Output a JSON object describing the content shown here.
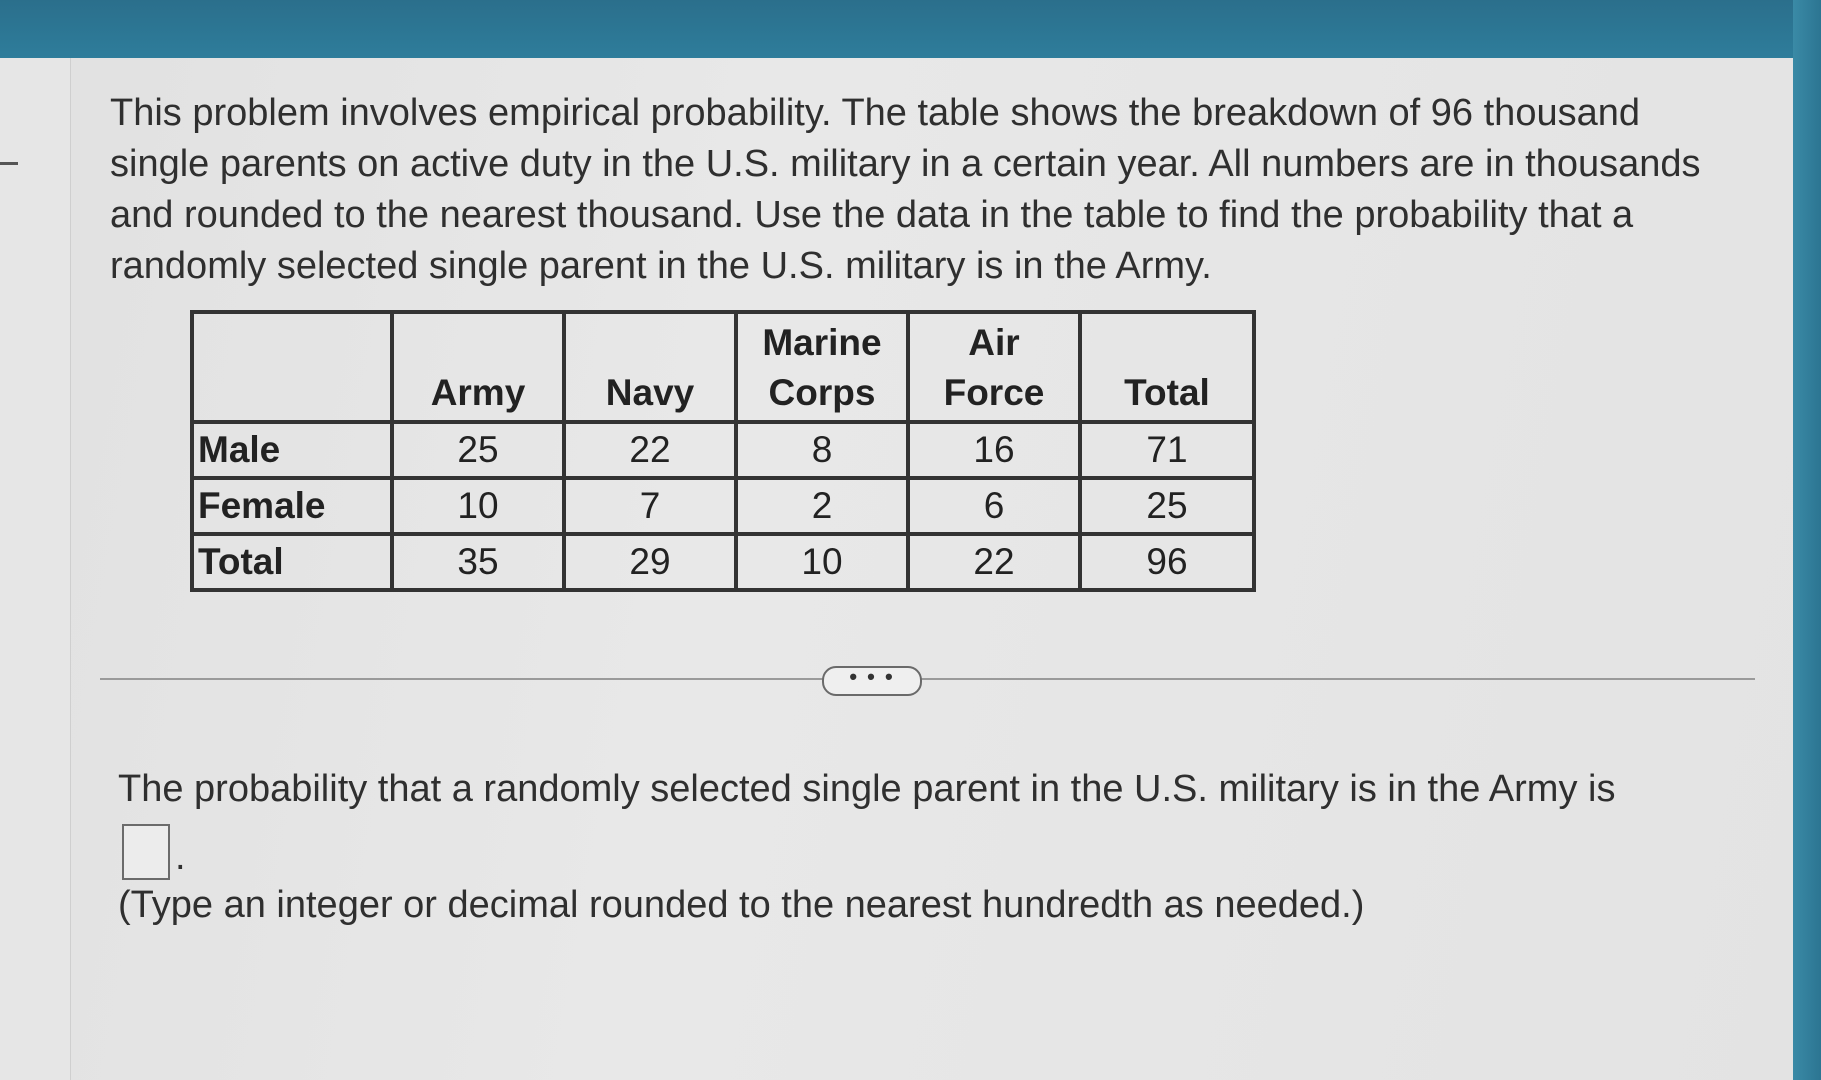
{
  "question": {
    "text": "This problem involves empirical probability.  The table shows the breakdown of 96 thousand single parents on active duty in the U.S. military in a certain year.  All numbers are in thousands and rounded to the nearest thousand.  Use the data in the table to find the probability that a randomly selected single parent in the U.S. military is in the Army."
  },
  "table": {
    "headers": [
      {
        "line1": "",
        "line2": ""
      },
      {
        "line1": "",
        "line2": "Army"
      },
      {
        "line1": "",
        "line2": "Navy"
      },
      {
        "line1": "Marine",
        "line2": "Corps"
      },
      {
        "line1": "Air",
        "line2": "Force"
      },
      {
        "line1": "",
        "line2": "Total"
      }
    ],
    "rows": [
      {
        "label": "Male",
        "values": [
          "25",
          "22",
          "8",
          "16",
          "71"
        ]
      },
      {
        "label": "Female",
        "values": [
          "10",
          "7",
          "2",
          "6",
          "25"
        ]
      },
      {
        "label": "Total",
        "values": [
          "35",
          "29",
          "10",
          "22",
          "96"
        ]
      }
    ]
  },
  "more_button": {
    "label": "• • •"
  },
  "answer": {
    "prompt": "The probability that a randomly selected single parent in the U.S. military is in the Army is",
    "input_value": "",
    "suffix": ".",
    "hint": "(Type an integer or decimal rounded to the nearest hundredth as needed.)"
  }
}
